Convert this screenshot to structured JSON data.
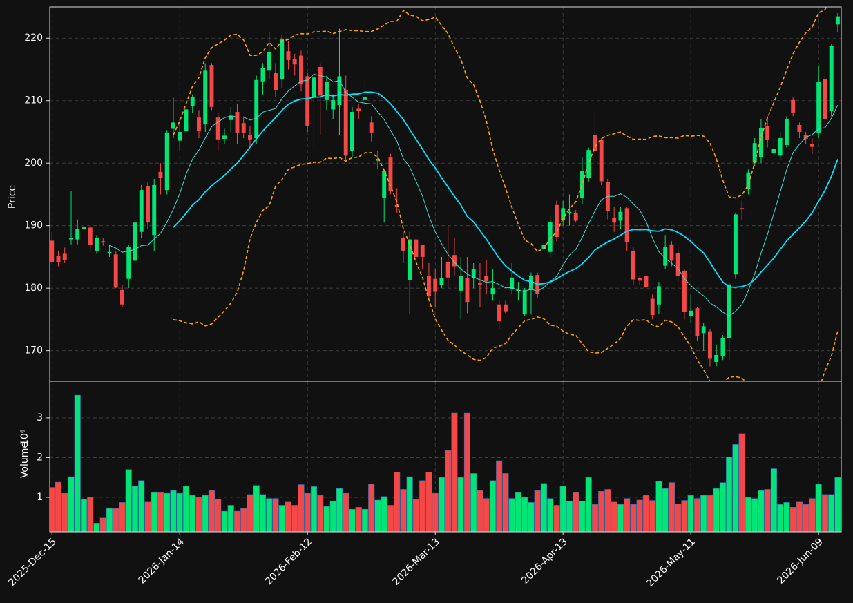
{
  "chart_data": {
    "type": "candlestick",
    "y_label": "Price",
    "volume_label": "Volume",
    "volume_scale_label": "10⁶",
    "xlim": [
      -0.35,
      123.55
    ],
    "xticks": [
      {
        "value": 0,
        "label": "2025-Dec-15"
      },
      {
        "value": 20,
        "label": "2026-Jan-14"
      },
      {
        "value": 40,
        "label": "2026-Feb-12"
      },
      {
        "value": 60,
        "label": "2026-Mar-13"
      },
      {
        "value": 80,
        "label": "2026-Apr-13"
      },
      {
        "value": 100,
        "label": "2026-May-11"
      },
      {
        "value": 120,
        "label": "2026-Jun-09"
      }
    ],
    "ylim": [
      165.1,
      225
    ],
    "yticks": [
      170,
      180,
      190,
      200,
      210,
      220
    ],
    "volume_ylim": [
      0.13,
      3.92
    ],
    "volume_yticks": [
      1,
      2,
      3
    ],
    "grid": true,
    "up_color": "#00e676",
    "down_color": "#f44848",
    "mav": [
      10,
      20
    ],
    "mav_colors": [
      "#40e0d0",
      "#00e5ff"
    ],
    "bollinger": {
      "window": 20,
      "std": 2,
      "color": "#ffa500"
    },
    "open": [
      187.6,
      185.2,
      185.5,
      187.8,
      187.8,
      189.5,
      189.7,
      186,
      187.5,
      185.6,
      185.4,
      179.7,
      181.5,
      184.4,
      189,
      196.3,
      188.5,
      198.6,
      195.7,
      205.5,
      203.6,
      205.1,
      209.2,
      207.3,
      206.2,
      215.7,
      207.3,
      203.9,
      206.9,
      208.2,
      206.4,
      204.5,
      204,
      213.1,
      214.8,
      214.5,
      213.4,
      217.9,
      216.7,
      217.2,
      213.9,
      210.6,
      215.4,
      210.1,
      208.6,
      209.3,
      211.7,
      202,
      208.7,
      210.1,
      206.5,
      200.4,
      194.5,
      200.9,
      193.3,
      188.1,
      181.3,
      187.8,
      186.9,
      181.9,
      181.5,
      180.5,
      184.2,
      185.3,
      179.6,
      181.6,
      181.6,
      180.8,
      181.9,
      179,
      177.4,
      177.4,
      179.9,
      179.5,
      175.8,
      179.7,
      182.1,
      186.3,
      185.8,
      193.3,
      190.9,
      192,
      192,
      194.5,
      197.6,
      204.5,
      203.7,
      197,
      191.3,
      190.8,
      192.8,
      186,
      181.6,
      181.9,
      178.3,
      177.4,
      183.6,
      187,
      185.6,
      182.8,
      175.5,
      176.8,
      172.8,
      173.1,
      168.2,
      169.2,
      172,
      182.2,
      192.8,
      195.8,
      200.1,
      200.9,
      205.9,
      201.6,
      201.2,
      202.9,
      210.1,
      206.1,
      204.5,
      203.1,
      204.9,
      213.4,
      208.4,
      222.2
    ],
    "high": [
      189,
      186,
      186.5,
      195.5,
      191,
      190,
      190,
      188.5,
      188,
      187,
      186,
      180.5,
      187,
      194.5,
      196.5,
      197,
      197.5,
      200,
      205.3,
      210.5,
      207,
      209,
      211,
      208.5,
      216,
      216,
      208,
      205.5,
      209,
      209.5,
      207.5,
      206,
      214,
      216,
      221,
      216,
      220.5,
      219.5,
      217.5,
      218,
      214.5,
      214.5,
      216,
      214,
      211,
      221.5,
      214,
      209,
      209.5,
      213.5,
      207.5,
      202,
      199,
      201.5,
      196,
      189,
      189,
      188.5,
      187,
      184,
      183,
      185,
      190,
      188,
      185,
      185,
      184,
      184,
      184.5,
      183,
      178,
      178,
      184,
      181,
      180,
      182.5,
      182.5,
      187.5,
      191.5,
      194,
      194,
      195,
      192.5,
      201,
      202.5,
      208.5,
      204,
      197.5,
      193,
      193,
      193,
      186.5,
      182,
      182,
      179,
      181,
      188.5,
      187.5,
      186.5,
      183,
      179,
      177,
      174.5,
      173.5,
      171,
      172.5,
      181,
      192,
      194,
      199,
      204,
      207,
      207.5,
      204,
      205,
      207.5,
      210.5,
      206.5,
      205,
      204,
      215.5,
      214,
      219,
      224
    ],
    "low": [
      184,
      183.5,
      184,
      187,
      187,
      189,
      186,
      185.5,
      186.8,
      185,
      180,
      177,
      180,
      184,
      188,
      189.5,
      186,
      195,
      195,
      204,
      202,
      203,
      208,
      204,
      205,
      208.5,
      202,
      203,
      205,
      203,
      204,
      202.5,
      203,
      211,
      213.5,
      210.5,
      212,
      215,
      214,
      211.5,
      205,
      202.5,
      204.5,
      208.5,
      207,
      204.5,
      200.5,
      201,
      207,
      209,
      203.5,
      199,
      190.5,
      195,
      192,
      184,
      175.8,
      184,
      183,
      178,
      177,
      180,
      180,
      182,
      175,
      176,
      180,
      177,
      179,
      178,
      173.5,
      176,
      179,
      178,
      175.5,
      175.8,
      178.5,
      186,
      185,
      187.5,
      190,
      190,
      190.5,
      193.5,
      197,
      200,
      196.5,
      191,
      189,
      189.5,
      186,
      180.5,
      180.5,
      179.5,
      175,
      175.8,
      183,
      183.5,
      181,
      175,
      174.5,
      171.5,
      170,
      167.5,
      167.5,
      168.5,
      168.5,
      181.5,
      191,
      195,
      199.5,
      200,
      202.5,
      201,
      200.5,
      202.5,
      207.5,
      204,
      203,
      201.5,
      204,
      206,
      207.5,
      221
    ],
    "close": [
      184.2,
      184.2,
      184.5,
      188,
      189.5,
      189.8,
      186.9,
      188.1,
      187.3,
      185.8,
      180.1,
      177.4,
      186.6,
      190.5,
      195.7,
      190.5,
      196.5,
      197.6,
      204.9,
      206.5,
      205,
      208.6,
      210.6,
      205.1,
      214.8,
      209,
      203.8,
      204.4,
      207.6,
      204.9,
      204.9,
      203.8,
      213.3,
      215.2,
      217.8,
      211.7,
      219.8,
      216.5,
      215.8,
      212.6,
      206,
      213.7,
      210.8,
      213,
      210.1,
      213.9,
      201.2,
      208.2,
      208.4,
      210.6,
      204.9,
      200.7,
      198.7,
      195.6,
      193,
      186,
      187.8,
      185,
      185,
      178.8,
      179.4,
      181.6,
      181.7,
      183.5,
      181.9,
      177.8,
      183,
      180.6,
      181.1,
      180,
      174.7,
      176.3,
      181.7,
      179.7,
      179.7,
      182,
      179.1,
      186.9,
      190.6,
      188.2,
      192.8,
      192.2,
      190.8,
      198.7,
      202.1,
      202,
      197.1,
      192.4,
      190.5,
      192.2,
      187.4,
      181.4,
      181.2,
      180.2,
      175.7,
      180.3,
      186.6,
      184.4,
      181.9,
      176.2,
      176.4,
      172.3,
      173.9,
      168.7,
      169.3,
      172,
      180.6,
      191.8,
      192.6,
      198.5,
      203.2,
      205.6,
      203.7,
      202.3,
      204,
      207.1,
      208.1,
      205,
      203.9,
      202.6,
      213,
      207,
      218.8,
      223.5
    ],
    "volume": [
      1.25,
      1.38,
      1.1,
      1.52,
      3.57,
      0.95,
      1.0,
      0.35,
      0.48,
      0.72,
      0.72,
      0.87,
      1.7,
      1.28,
      1.42,
      0.88,
      1.12,
      1.12,
      1.1,
      1.17,
      1.1,
      1.28,
      1.05,
      1.0,
      1.05,
      1.17,
      0.95,
      0.65,
      0.8,
      0.65,
      0.72,
      1.07,
      1.3,
      1.07,
      0.97,
      0.97,
      0.8,
      0.88,
      0.8,
      1.32,
      1.1,
      1.27,
      1.05,
      0.77,
      0.9,
      1.22,
      1.1,
      0.7,
      0.75,
      0.7,
      1.33,
      0.93,
      1.02,
      0.8,
      1.63,
      1.2,
      1.52,
      0.95,
      1.42,
      1.63,
      1.1,
      1.5,
      2.18,
      3.12,
      1.5,
      3.12,
      1.6,
      1.17,
      0.97,
      1.42,
      1.92,
      1.6,
      0.97,
      1.12,
      1.0,
      0.87,
      1.17,
      1.35,
      0.97,
      0.8,
      1.28,
      0.9,
      1.12,
      0.9,
      1.5,
      0.82,
      1.15,
      1.2,
      0.88,
      0.82,
      0.97,
      0.82,
      0.93,
      1.05,
      0.92,
      1.4,
      1.22,
      1.37,
      0.83,
      0.92,
      1.05,
      0.97,
      1.05,
      1.05,
      1.22,
      1.37,
      2.02,
      2.33,
      2.6,
      1.0,
      0.97,
      1.17,
      1.2,
      1.72,
      0.82,
      0.87,
      0.75,
      0.88,
      0.82,
      0.97,
      1.33,
      1.07,
      1.07,
      1.5
    ]
  }
}
